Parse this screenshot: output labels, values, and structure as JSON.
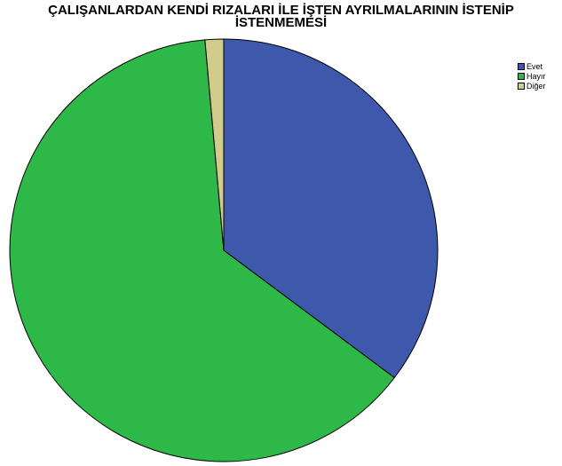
{
  "chart_data": {
    "type": "pie",
    "title_lines": [
      "ÇALIŞANLARDAN KENDİ RIZALARI İLE İŞTEN AYRILMALARININ İSTENİP",
      "İSTENMEMESİ"
    ],
    "slices": [
      {
        "label": "Evet",
        "value": 35.3,
        "color": "#3E58AC"
      },
      {
        "label": "Hayır",
        "value": 63.3,
        "color": "#2EB848"
      },
      {
        "label": "Diğer",
        "value": 1.4,
        "color": "#D2CC8C"
      }
    ],
    "start_angle_deg": 0,
    "direction": "clockwise",
    "legend_position": "top-right",
    "outline_color": "#000000"
  }
}
